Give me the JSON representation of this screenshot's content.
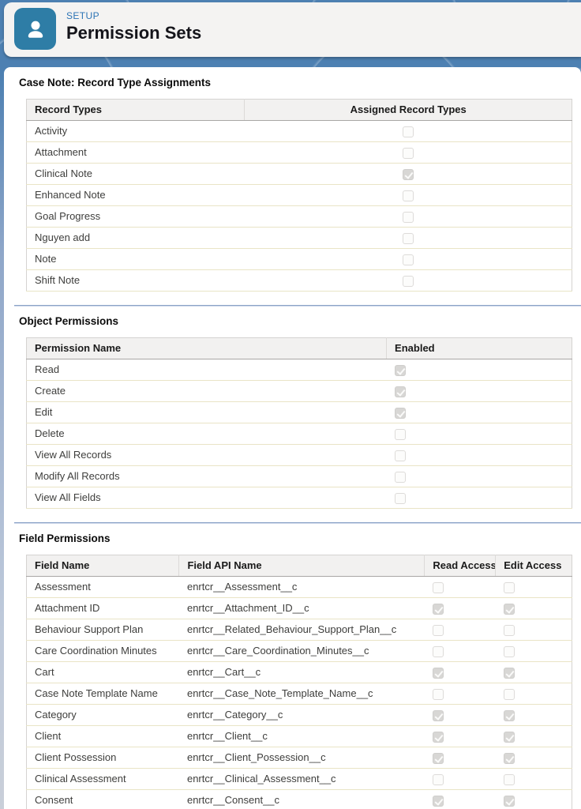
{
  "header": {
    "eyebrow": "SETUP",
    "title": "Permission Sets",
    "icon": "user-icon"
  },
  "colors": {
    "setup_background_blue": "#4d80b2",
    "app_icon_blue": "#2e7da6",
    "eyebrow_blue": "#2d74b5",
    "row_border_yellow": "#e9e4c6",
    "divider_blue": "#8ba3c7",
    "checkbox_checked_gray": "#d8d7d5"
  },
  "sections": [
    {
      "id": "record-type-assignments",
      "title": "Case Note: Record Type Assignments",
      "columns": [
        {
          "label": "Record Types",
          "width": "40%",
          "align": "left"
        },
        {
          "label": "Assigned Record Types",
          "width": "60%",
          "align": "center"
        }
      ],
      "rows": [
        [
          {
            "text": "Activity"
          },
          {
            "check": false
          }
        ],
        [
          {
            "text": "Attachment"
          },
          {
            "check": false
          }
        ],
        [
          {
            "text": "Clinical Note"
          },
          {
            "check": true
          }
        ],
        [
          {
            "text": "Enhanced Note"
          },
          {
            "check": false
          }
        ],
        [
          {
            "text": "Goal Progress"
          },
          {
            "check": false
          }
        ],
        [
          {
            "text": "Nguyen add"
          },
          {
            "check": false
          }
        ],
        [
          {
            "text": "Note"
          },
          {
            "check": false
          }
        ],
        [
          {
            "text": "Shift Note"
          },
          {
            "check": false
          }
        ]
      ]
    },
    {
      "id": "object-permissions",
      "title": "Object Permissions",
      "columns": [
        {
          "label": "Permission Name",
          "width": "66%",
          "align": "left"
        },
        {
          "label": "Enabled",
          "width": "34%",
          "align": "left"
        }
      ],
      "rows": [
        [
          {
            "text": "Read"
          },
          {
            "check": true
          }
        ],
        [
          {
            "text": "Create"
          },
          {
            "check": true
          }
        ],
        [
          {
            "text": "Edit"
          },
          {
            "check": true
          }
        ],
        [
          {
            "text": "Delete"
          },
          {
            "check": false
          }
        ],
        [
          {
            "text": "View All Records"
          },
          {
            "check": false
          }
        ],
        [
          {
            "text": "Modify All Records"
          },
          {
            "check": false
          }
        ],
        [
          {
            "text": "View All Fields"
          },
          {
            "check": false
          }
        ]
      ]
    },
    {
      "id": "field-permissions",
      "title": "Field Permissions",
      "columns": [
        {
          "label": "Field Name",
          "width": "28%",
          "align": "left"
        },
        {
          "label": "Field API Name",
          "width": "45%",
          "align": "left"
        },
        {
          "label": "Read Access",
          "width": "13%",
          "align": "left"
        },
        {
          "label": "Edit Access",
          "width": "14%",
          "align": "left"
        }
      ],
      "rows": [
        [
          {
            "text": "Assessment"
          },
          {
            "text": "enrtcr__Assessment__c"
          },
          {
            "check": false
          },
          {
            "check": false
          }
        ],
        [
          {
            "text": "Attachment ID"
          },
          {
            "text": "enrtcr__Attachment_ID__c"
          },
          {
            "check": true
          },
          {
            "check": true
          }
        ],
        [
          {
            "text": "Behaviour Support Plan"
          },
          {
            "text": "enrtcr__Related_Behaviour_Support_Plan__c"
          },
          {
            "check": false
          },
          {
            "check": false
          }
        ],
        [
          {
            "text": "Care Coordination Minutes"
          },
          {
            "text": "enrtcr__Care_Coordination_Minutes__c"
          },
          {
            "check": false
          },
          {
            "check": false
          }
        ],
        [
          {
            "text": "Cart"
          },
          {
            "text": "enrtcr__Cart__c"
          },
          {
            "check": true
          },
          {
            "check": true
          }
        ],
        [
          {
            "text": "Case Note Template Name"
          },
          {
            "text": "enrtcr__Case_Note_Template_Name__c"
          },
          {
            "check": false
          },
          {
            "check": false
          }
        ],
        [
          {
            "text": "Category"
          },
          {
            "text": "enrtcr__Category__c"
          },
          {
            "check": true
          },
          {
            "check": true
          }
        ],
        [
          {
            "text": "Client"
          },
          {
            "text": "enrtcr__Client__c"
          },
          {
            "check": true
          },
          {
            "check": true
          }
        ],
        [
          {
            "text": "Client Possession"
          },
          {
            "text": "enrtcr__Client_Possession__c"
          },
          {
            "check": true
          },
          {
            "check": true
          }
        ],
        [
          {
            "text": "Clinical Assessment"
          },
          {
            "text": "enrtcr__Clinical_Assessment__c"
          },
          {
            "check": false
          },
          {
            "check": false
          }
        ],
        [
          {
            "text": "Consent"
          },
          {
            "text": "enrtcr__Consent__c"
          },
          {
            "check": true
          },
          {
            "check": true
          }
        ]
      ]
    }
  ]
}
